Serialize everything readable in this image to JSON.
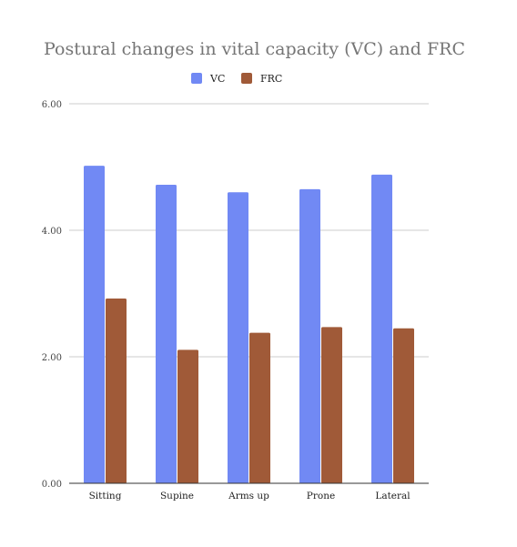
{
  "chart_data": {
    "type": "bar",
    "title": "Postural changes in vital capacity (VC) and FRC",
    "categories": [
      "Sitting",
      "Supine",
      "Arms up",
      "Prone",
      "Lateral"
    ],
    "series": [
      {
        "name": "VC",
        "color": "#7189f4",
        "values": [
          5.02,
          4.72,
          4.6,
          4.65,
          4.88
        ]
      },
      {
        "name": "FRC",
        "color": "#a05a38",
        "values": [
          2.92,
          2.11,
          2.38,
          2.47,
          2.45
        ]
      }
    ],
    "ylim": [
      0,
      6
    ],
    "yticks": [
      0,
      2,
      4,
      6
    ],
    "ytick_labels": [
      "0.00",
      "2.00",
      "4.00",
      "6.00"
    ],
    "legend_position": "top-center",
    "grid": true
  }
}
